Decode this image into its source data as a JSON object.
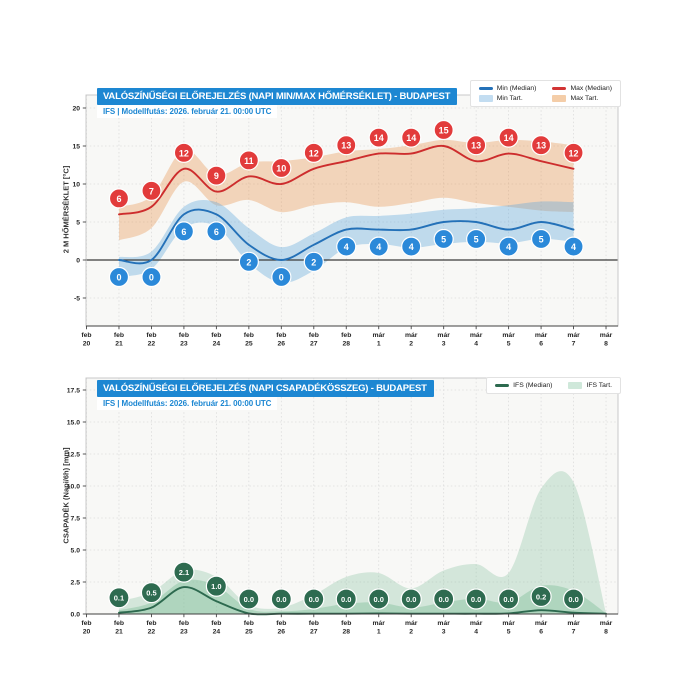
{
  "colors": {
    "accent_blue": "#1d87d2",
    "max_red": "#cd2d2d",
    "max_bubble_red": "#e23b3b",
    "min_blue": "#2471b8",
    "min_bubble_blue": "#2b89d9",
    "green": "#2d6a4f",
    "green_bubble": "#2e6b50",
    "max_band": "#f4cda8",
    "min_band": "#c3ddf1",
    "green_band": "#cfe8da"
  },
  "chart_data": [
    {
      "type": "line",
      "name": "temperature",
      "title": "VALÓSZÍNŰSÉGI ELŐREJELZÉS (NAPI MIN/MAX HŐMÉRSÉKLET) - BUDAPEST",
      "subtitle": "IFS | Modellfutás: 2026. február 21. 00:00 UTC",
      "ylabel": "2 M HŐMÉRSÉKLET [°C]",
      "x_tick_labels": [
        "feb 20",
        "feb 21",
        "feb 22",
        "feb 23",
        "feb 24",
        "feb 25",
        "feb 26",
        "feb 27",
        "feb 28",
        "már 1",
        "már 2",
        "már 3",
        "már 4",
        "már 5",
        "már 6",
        "már 7",
        "már 8"
      ],
      "data_start_index": 1,
      "ylim": [
        -8.7,
        21.7
      ],
      "yticks": [
        20,
        15,
        10,
        5,
        0,
        -5
      ],
      "ytick_labels": [
        "20",
        "15",
        "10",
        "5",
        "0",
        "-5"
      ],
      "zero_line": true,
      "grid": true,
      "legend": [
        {
          "label": "Min (Median)",
          "swatch": "line",
          "color": "#2471b8"
        },
        {
          "label": "Max (Median)",
          "swatch": "line",
          "color": "#d23434"
        },
        {
          "label": "Min Tart.",
          "swatch": "band",
          "color": "#c3ddf1"
        },
        {
          "label": "Max Tart.",
          "swatch": "band",
          "color": "#f4cda8"
        }
      ],
      "series": [
        {
          "name": "max-median",
          "line_color": "#cd2d2d",
          "bubble_color": "#e23b3b",
          "bubble_offset": -16,
          "values": [
            6,
            7,
            12,
            9,
            11,
            10,
            12,
            13,
            14,
            14,
            15,
            13,
            14,
            13,
            12
          ],
          "labels": [
            "6",
            "7",
            "12",
            "9",
            "11",
            "10",
            "12",
            "13",
            "14",
            "14",
            "15",
            "13",
            "14",
            "13",
            "12"
          ]
        },
        {
          "name": "min-median",
          "line_color": "#2471b8",
          "bubble_color": "#2b89d9",
          "bubble_offset": 17,
          "values": [
            0,
            0,
            6,
            6,
            2,
            0,
            2,
            4,
            4,
            4,
            5,
            5,
            4,
            5,
            4
          ],
          "labels": [
            "0",
            "0",
            "6",
            "6",
            "2",
            "0",
            "2",
            "4",
            "4",
            "4",
            "5",
            "5",
            "4",
            "5",
            "4"
          ]
        }
      ],
      "bands": [
        {
          "name": "max-tart",
          "fill": "rgba(231,140,63,0.33)",
          "upper": [
            7.0,
            8.4,
            14.5,
            11.2,
            12.8,
            13.0,
            13.5,
            14.3,
            14.6,
            15.1,
            15.8,
            15.4,
            15.8,
            15.6,
            15.1
          ],
          "lower": [
            2.6,
            4.2,
            10.3,
            7.2,
            7.9,
            6.3,
            7.2,
            7.6,
            7.0,
            7.5,
            8.2,
            7.5,
            7.0,
            6.5,
            6.3
          ]
        },
        {
          "name": "min-tart",
          "fill": "rgba(96,168,220,0.38)",
          "upper": [
            0.4,
            1.1,
            7.0,
            7.6,
            4.2,
            1.7,
            3.5,
            5.6,
            5.8,
            6.1,
            6.6,
            6.8,
            7.2,
            7.7,
            7.6
          ],
          "lower": [
            -2.2,
            -1.2,
            4.2,
            4.4,
            -0.4,
            -3.0,
            -1.4,
            1.6,
            2.1,
            1.6,
            2.1,
            2.4,
            2.2,
            2.8,
            2.4
          ]
        }
      ]
    },
    {
      "type": "area",
      "name": "precipitation",
      "title": "VALÓSZÍNŰSÉGI ELŐREJELZÉS (NAPI CSAPADÉKÖSSZEG) - BUDAPEST",
      "subtitle": "IFS | Modellfutás: 2026. február 21. 00:00 UTC",
      "ylabel": "CSAPADÉK (Napi/6h) [mm]",
      "x_tick_labels": [
        "feb 20",
        "feb 21",
        "feb 22",
        "feb 23",
        "feb 24",
        "feb 25",
        "feb 26",
        "feb 27",
        "feb 28",
        "már 1",
        "már 2",
        "már 3",
        "már 4",
        "már 5",
        "már 6",
        "már 7",
        "már 8"
      ],
      "data_start_index": 1,
      "ylim": [
        0,
        18.4
      ],
      "yticks": [
        17.5,
        15.0,
        12.5,
        10.0,
        7.5,
        5.0,
        2.5,
        0.0
      ],
      "ytick_labels": [
        "17.5",
        "15.0",
        "12.5",
        "10.0",
        "7.5",
        "5.0",
        "2.5",
        "0.0"
      ],
      "zero_line": false,
      "grid": true,
      "legend": [
        {
          "label": "IFS (Median)",
          "swatch": "line",
          "color": "#2d6a4f"
        },
        {
          "label": "IFS Tart.",
          "swatch": "band",
          "color": "#cfe8da"
        }
      ],
      "series": [
        {
          "name": "ifs-median",
          "line_color": "#2d6a4f",
          "bubble_color": "#2e6b50",
          "bubble_offset": -15,
          "values": [
            0.1,
            0.5,
            2.1,
            1.0,
            0.0,
            0.0,
            0.0,
            0.0,
            0.0,
            0.0,
            0.0,
            0.0,
            0.0,
            0.2,
            0.0
          ],
          "labels": [
            "0.1",
            "0.5",
            "2.1",
            "1.0",
            "0.0",
            "0.0",
            "0.0",
            "0.0",
            "0.0",
            "0.0",
            "0.0",
            "0.0",
            "0.0",
            "0.2",
            "0.0"
          ],
          "line_values": [
            0.1,
            0.5,
            2.1,
            1.0,
            0.05,
            0.02,
            0.02,
            0.02,
            0.05,
            0.02,
            0.02,
            0.02,
            0.05,
            0.3,
            0.1,
            0.02
          ]
        }
      ],
      "bands": [
        {
          "name": "ifs-tart-outer",
          "fill": "rgba(126,190,153,0.30)",
          "upper": [
            1.0,
            1.7,
            3.4,
            2.9,
            0.7,
            0.5,
            1.5,
            2.9,
            3.2,
            2.0,
            3.4,
            3.9,
            3.2,
            9.8,
            10.3,
            0.1
          ],
          "lower": [
            0,
            0,
            0,
            0,
            0,
            0,
            0,
            0,
            0,
            0,
            0,
            0,
            0,
            0,
            0,
            0
          ]
        },
        {
          "name": "ifs-tart-inner",
          "fill": "rgba(126,190,153,0.42)",
          "upper": [
            0.3,
            0.9,
            2.6,
            2.2,
            0.4,
            0.2,
            0.4,
            0.8,
            0.9,
            0.5,
            0.9,
            1.2,
            0.9,
            2.2,
            1.8,
            0.05
          ],
          "lower": [
            0,
            0,
            0,
            0,
            0,
            0,
            0,
            0,
            0,
            0,
            0,
            0,
            0,
            0,
            0,
            0
          ]
        }
      ]
    }
  ]
}
